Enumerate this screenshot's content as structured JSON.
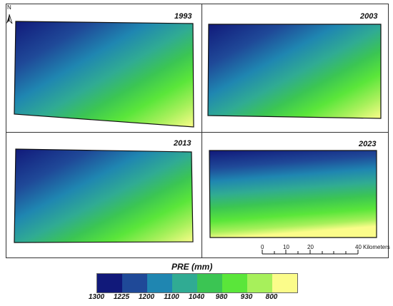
{
  "panels": [
    {
      "year": "1993",
      "gradient": "diag"
    },
    {
      "year": "2003",
      "gradient": "diag"
    },
    {
      "year": "2013",
      "gradient": "diag"
    },
    {
      "year": "2023",
      "gradient": "horiz"
    }
  ],
  "north_label": "N",
  "scale_bar": {
    "ticks": [
      "0",
      "10",
      "20",
      "40"
    ],
    "unit": "Kilometers"
  },
  "legend": {
    "title": "PRE (mm)",
    "classes": [
      {
        "label": "1300",
        "color": "#11197a"
      },
      {
        "label": "1225",
        "color": "#1f4998"
      },
      {
        "label": "1200",
        "color": "#1f86b1"
      },
      {
        "label": "1100",
        "color": "#30ab93"
      },
      {
        "label": "1040",
        "color": "#3bc553"
      },
      {
        "label": "980",
        "color": "#5ae63a"
      },
      {
        "label": "930",
        "color": "#a7f05b"
      },
      {
        "label": "800",
        "color": "#fbfc8a"
      }
    ]
  }
}
